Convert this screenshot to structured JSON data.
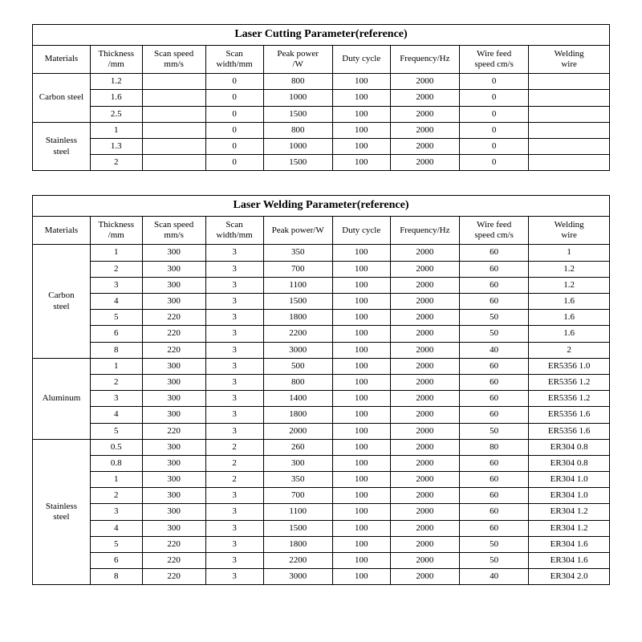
{
  "cutting_table": {
    "title": "Laser Cutting Parameter(reference)",
    "columns": [
      "Materials",
      "Thickness\n/mm",
      "Scan speed\nmm/s",
      "Scan\nwidth/mm",
      "Peak power\n/W",
      "Duty cycle",
      "Frequency/Hz",
      "Wire feed\nspeed cm/s",
      "Welding\nwire"
    ],
    "groups": [
      {
        "material": "Carbon steel",
        "rows": [
          {
            "thickness": "1.2",
            "scan_speed": "",
            "scan_width": "0",
            "peak_power": "800",
            "duty": "100",
            "freq": "2000",
            "wire_feed": "0",
            "wire": ""
          },
          {
            "thickness": "1.6",
            "scan_speed": "",
            "scan_width": "0",
            "peak_power": "1000",
            "duty": "100",
            "freq": "2000",
            "wire_feed": "0",
            "wire": ""
          },
          {
            "thickness": "2.5",
            "scan_speed": "",
            "scan_width": "0",
            "peak_power": "1500",
            "duty": "100",
            "freq": "2000",
            "wire_feed": "0",
            "wire": ""
          }
        ]
      },
      {
        "material": "Stainless\nsteel",
        "rows": [
          {
            "thickness": "1",
            "scan_speed": "",
            "scan_width": "0",
            "peak_power": "800",
            "duty": "100",
            "freq": "2000",
            "wire_feed": "0",
            "wire": ""
          },
          {
            "thickness": "1.3",
            "scan_speed": "",
            "scan_width": "0",
            "peak_power": "1000",
            "duty": "100",
            "freq": "2000",
            "wire_feed": "0",
            "wire": ""
          },
          {
            "thickness": "2",
            "scan_speed": "",
            "scan_width": "0",
            "peak_power": "1500",
            "duty": "100",
            "freq": "2000",
            "wire_feed": "0",
            "wire": ""
          }
        ]
      }
    ]
  },
  "welding_table": {
    "title": "Laser Welding Parameter(reference)",
    "columns": [
      "Materials",
      "Thickness\n/mm",
      "Scan speed\nmm/s",
      "Scan\nwidth/mm",
      "Peak power/W",
      "Duty cycle",
      "Frequency/Hz",
      "Wire feed\nspeed cm/s",
      "Welding\nwire"
    ],
    "groups": [
      {
        "material": "Carbon\nsteel",
        "rows": [
          {
            "thickness": "1",
            "scan_speed": "300",
            "scan_width": "3",
            "peak_power": "350",
            "duty": "100",
            "freq": "2000",
            "wire_feed": "60",
            "wire": "1"
          },
          {
            "thickness": "2",
            "scan_speed": "300",
            "scan_width": "3",
            "peak_power": "700",
            "duty": "100",
            "freq": "2000",
            "wire_feed": "60",
            "wire": "1.2"
          },
          {
            "thickness": "3",
            "scan_speed": "300",
            "scan_width": "3",
            "peak_power": "1100",
            "duty": "100",
            "freq": "2000",
            "wire_feed": "60",
            "wire": "1.2"
          },
          {
            "thickness": "4",
            "scan_speed": "300",
            "scan_width": "3",
            "peak_power": "1500",
            "duty": "100",
            "freq": "2000",
            "wire_feed": "60",
            "wire": "1.6"
          },
          {
            "thickness": "5",
            "scan_speed": "220",
            "scan_width": "3",
            "peak_power": "1800",
            "duty": "100",
            "freq": "2000",
            "wire_feed": "50",
            "wire": "1.6"
          },
          {
            "thickness": "6",
            "scan_speed": "220",
            "scan_width": "3",
            "peak_power": "2200",
            "duty": "100",
            "freq": "2000",
            "wire_feed": "50",
            "wire": "1.6"
          },
          {
            "thickness": "8",
            "scan_speed": "220",
            "scan_width": "3",
            "peak_power": "3000",
            "duty": "100",
            "freq": "2000",
            "wire_feed": "40",
            "wire": "2"
          }
        ]
      },
      {
        "material": "Aluminum",
        "rows": [
          {
            "thickness": "1",
            "scan_speed": "300",
            "scan_width": "3",
            "peak_power": "500",
            "duty": "100",
            "freq": "2000",
            "wire_feed": "60",
            "wire": "ER5356 1.0"
          },
          {
            "thickness": "2",
            "scan_speed": "300",
            "scan_width": "3",
            "peak_power": "800",
            "duty": "100",
            "freq": "2000",
            "wire_feed": "60",
            "wire": "ER5356 1.2"
          },
          {
            "thickness": "3",
            "scan_speed": "300",
            "scan_width": "3",
            "peak_power": "1400",
            "duty": "100",
            "freq": "2000",
            "wire_feed": "60",
            "wire": "ER5356 1.2"
          },
          {
            "thickness": "4",
            "scan_speed": "300",
            "scan_width": "3",
            "peak_power": "1800",
            "duty": "100",
            "freq": "2000",
            "wire_feed": "60",
            "wire": "ER5356 1.6"
          },
          {
            "thickness": "5",
            "scan_speed": "220",
            "scan_width": "3",
            "peak_power": "2000",
            "duty": "100",
            "freq": "2000",
            "wire_feed": "50",
            "wire": "ER5356 1.6"
          }
        ]
      },
      {
        "material": "Stainless\nsteel",
        "rows": [
          {
            "thickness": "0.5",
            "scan_speed": "300",
            "scan_width": "2",
            "peak_power": "260",
            "duty": "100",
            "freq": "2000",
            "wire_feed": "80",
            "wire": "ER304 0.8"
          },
          {
            "thickness": "0.8",
            "scan_speed": "300",
            "scan_width": "2",
            "peak_power": "300",
            "duty": "100",
            "freq": "2000",
            "wire_feed": "60",
            "wire": "ER304 0.8"
          },
          {
            "thickness": "1",
            "scan_speed": "300",
            "scan_width": "2",
            "peak_power": "350",
            "duty": "100",
            "freq": "2000",
            "wire_feed": "60",
            "wire": "ER304 1.0"
          },
          {
            "thickness": "2",
            "scan_speed": "300",
            "scan_width": "3",
            "peak_power": "700",
            "duty": "100",
            "freq": "2000",
            "wire_feed": "60",
            "wire": "ER304 1.0"
          },
          {
            "thickness": "3",
            "scan_speed": "300",
            "scan_width": "3",
            "peak_power": "1100",
            "duty": "100",
            "freq": "2000",
            "wire_feed": "60",
            "wire": "ER304 1.2"
          },
          {
            "thickness": "4",
            "scan_speed": "300",
            "scan_width": "3",
            "peak_power": "1500",
            "duty": "100",
            "freq": "2000",
            "wire_feed": "60",
            "wire": "ER304 1.2"
          },
          {
            "thickness": "5",
            "scan_speed": "220",
            "scan_width": "3",
            "peak_power": "1800",
            "duty": "100",
            "freq": "2000",
            "wire_feed": "50",
            "wire": "ER304 1.6"
          },
          {
            "thickness": "6",
            "scan_speed": "220",
            "scan_width": "3",
            "peak_power": "2200",
            "duty": "100",
            "freq": "2000",
            "wire_feed": "50",
            "wire": "ER304 1.6"
          },
          {
            "thickness": "8",
            "scan_speed": "220",
            "scan_width": "3",
            "peak_power": "3000",
            "duty": "100",
            "freq": "2000",
            "wire_feed": "40",
            "wire": "ER304 2.0"
          }
        ]
      }
    ]
  },
  "styling": {
    "col_widths_pct": [
      10,
      9,
      11,
      10,
      12,
      10,
      12,
      12,
      14
    ],
    "border_color": "#000000",
    "background_color": "#ffffff",
    "text_color": "#000000",
    "title_fontsize": 14,
    "header_fontsize": 11,
    "cell_fontsize": 11,
    "font_family": "Times New Roman"
  }
}
